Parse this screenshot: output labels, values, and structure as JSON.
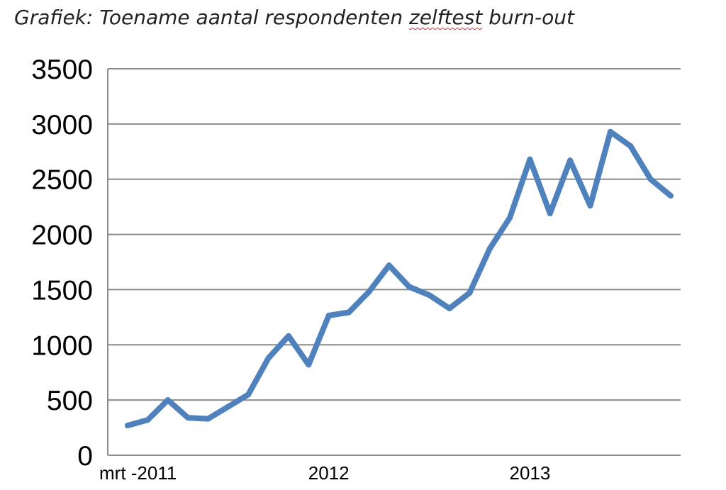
{
  "chart_data": {
    "type": "line",
    "title_prefix": "Grafiek: Toename aantal respondenten ",
    "title_spell": "zelftest",
    "title_suffix": " burn-out",
    "xlabel": "",
    "ylabel": "",
    "ylim": [
      0,
      3500
    ],
    "yticks": [
      0,
      500,
      1000,
      1500,
      2000,
      2500,
      3000,
      3500
    ],
    "ytick_labels": [
      "0",
      "500",
      "1000",
      "1500",
      "2000",
      "2500",
      "3000",
      "3500"
    ],
    "x_tick_labels": [
      {
        "label": "mrt -2011",
        "index": 0
      },
      {
        "label": "2012",
        "index": 10
      },
      {
        "label": "2013",
        "index": 20
      }
    ],
    "grid": true,
    "legend": "none",
    "series": [
      {
        "color": "#4f81bd",
        "values": [
          270,
          320,
          500,
          340,
          330,
          440,
          550,
          880,
          1080,
          820,
          1265,
          1295,
          1480,
          1720,
          1525,
          1450,
          1330,
          1470,
          1870,
          2150,
          2680,
          2190,
          2670,
          2260,
          2930,
          2800,
          2500,
          2350
        ]
      }
    ]
  }
}
